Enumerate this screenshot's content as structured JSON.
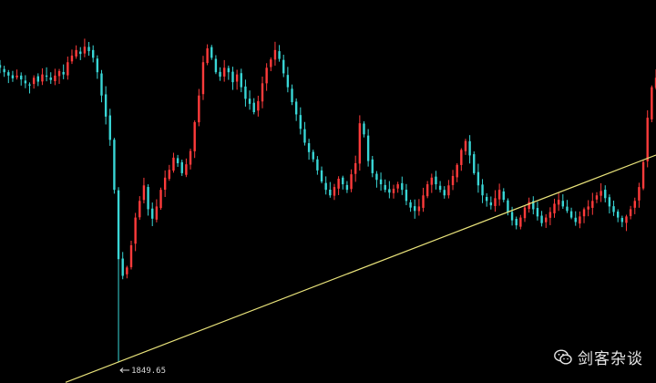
{
  "watermark": {
    "text": "剑客杂谈",
    "icon": "wechat-icon"
  },
  "chart_data": {
    "type": "candlestick",
    "colors": {
      "up": "#ff3b3b",
      "down": "#39d6d6",
      "trendline": "#e8e27a",
      "background": "#000000"
    },
    "annotations": [
      {
        "type": "low-marker",
        "label": "1849.65",
        "value": 1849.65,
        "candle_index": 28
      }
    ],
    "trendline": {
      "from_price": 1849.65,
      "from_candle": 0,
      "to_price": 2305,
      "to_candle": 155
    },
    "closes": [
      2380,
      2372,
      2366,
      2361,
      2366,
      2359,
      2352,
      2348,
      2362,
      2355,
      2368,
      2364,
      2358,
      2366,
      2374,
      2368,
      2390,
      2402,
      2412,
      2405,
      2418,
      2410,
      2398,
      2372,
      2330,
      2292,
      2250,
      2160,
      2035,
      2005,
      2020,
      2060,
      2110,
      2140,
      2168,
      2125,
      2108,
      2130,
      2160,
      2182,
      2196,
      2218,
      2208,
      2190,
      2206,
      2230,
      2282,
      2330,
      2390,
      2415,
      2398,
      2372,
      2364,
      2380,
      2372,
      2354,
      2368,
      2345,
      2324,
      2315,
      2300,
      2320,
      2352,
      2380,
      2395,
      2412,
      2396,
      2370,
      2345,
      2318,
      2296,
      2270,
      2245,
      2228,
      2215,
      2195,
      2175,
      2160,
      2150,
      2165,
      2180,
      2170,
      2160,
      2188,
      2208,
      2280,
      2260,
      2212,
      2190,
      2178,
      2170,
      2160,
      2155,
      2162,
      2170,
      2160,
      2140,
      2128,
      2122,
      2130,
      2150,
      2170,
      2182,
      2170,
      2160,
      2150,
      2168,
      2185,
      2205,
      2232,
      2248,
      2222,
      2190,
      2168,
      2150,
      2140,
      2132,
      2145,
      2160,
      2142,
      2120,
      2105,
      2096,
      2110,
      2128,
      2138,
      2125,
      2112,
      2100,
      2110,
      2120,
      2135,
      2142,
      2130,
      2122,
      2110,
      2102,
      2112,
      2125,
      2130,
      2140,
      2150,
      2158,
      2145,
      2130,
      2120,
      2110,
      2102,
      2112,
      2125,
      2140,
      2165,
      2210,
      2290,
      2345,
      2362
    ]
  }
}
